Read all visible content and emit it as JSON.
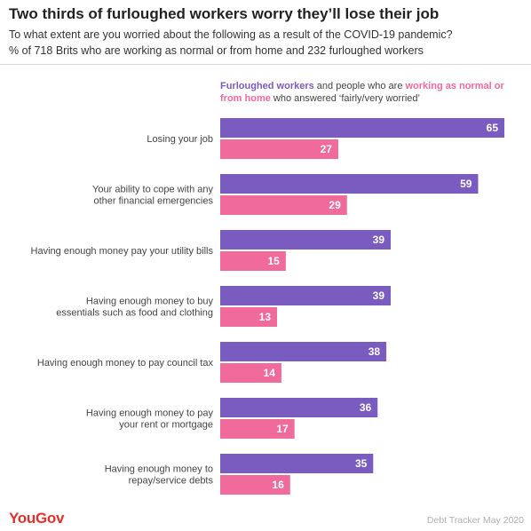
{
  "header": {
    "title": "Two thirds of furloughed workers worry they’ll lose their job",
    "subtitle_1": "To what extent are you worried about the following as a result of the COVID-19 pandemic?",
    "subtitle_2": "% of 718 Brits who are working as normal or from home and 232 furloughed workers"
  },
  "legend": {
    "part_1": "Furloughed workers",
    "part_2": " and people who are ",
    "part_3": "working as normal or from home",
    "part_4": " who answered ‘fairly/very worried’"
  },
  "footer": {
    "logo": "YouGov",
    "source": "Debt Tracker May 2020"
  },
  "colors": {
    "furloughed": "#7a5bbf",
    "working": "#f06a9c"
  },
  "chart_data": {
    "type": "bar",
    "orientation": "horizontal",
    "categories": [
      [
        "Losing your job"
      ],
      [
        "Your ability to cope with any",
        "other financial emergencies"
      ],
      [
        "Having enough money pay your utility bills"
      ],
      [
        "Having enough money to buy",
        "essentials such as food and clothing"
      ],
      [
        "Having enough money to pay council tax"
      ],
      [
        "Having enough money to pay",
        "your rent or mortgage"
      ],
      [
        "Having enough money to",
        "repay/service debts"
      ]
    ],
    "series": [
      {
        "name": "Furloughed workers",
        "color": "#7a5bbf",
        "values": [
          65,
          59,
          39,
          39,
          38,
          36,
          35
        ]
      },
      {
        "name": "working as normal or from home",
        "color": "#f06a9c",
        "values": [
          27,
          29,
          15,
          13,
          14,
          17,
          16
        ]
      }
    ],
    "xlim": [
      0,
      65
    ],
    "axis_visible": false,
    "grid": false,
    "legend_position": "top"
  }
}
